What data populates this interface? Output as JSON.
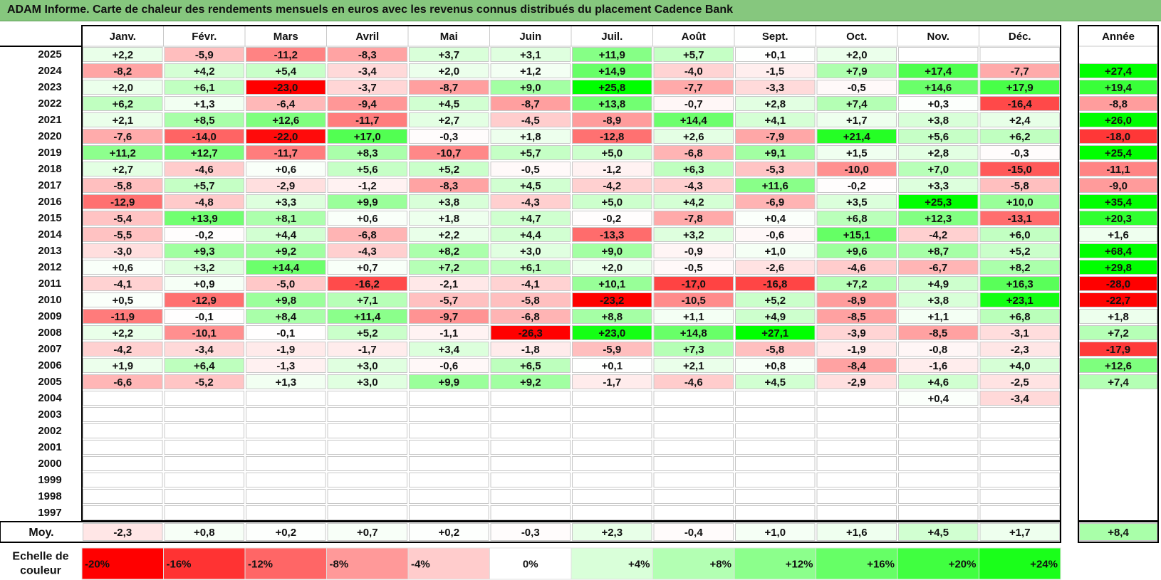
{
  "title": "ADAM Informe. Carte de chaleur des rendements mensuels en euros avec les revenus connus distribués du placement Cadence Bank",
  "chart_data": {
    "type": "heatmap",
    "months": [
      "Janv.",
      "Févr.",
      "Mars",
      "Avril",
      "Mai",
      "Juin",
      "Juil.",
      "Août",
      "Sept.",
      "Oct.",
      "Nov.",
      "Déc."
    ],
    "year_header": "Année",
    "rows": [
      {
        "year": "2025",
        "values": [
          "+2,2",
          "-5,9",
          "-11,2",
          "-8,3",
          "+3,7",
          "+3,1",
          "+11,9",
          "+5,7",
          "+0,1",
          "+2,0",
          "",
          ""
        ],
        "annual": ""
      },
      {
        "year": "2024",
        "values": [
          "-8,2",
          "+4,2",
          "+5,4",
          "-3,4",
          "+2,0",
          "+1,2",
          "+14,9",
          "-4,0",
          "-1,5",
          "+7,9",
          "+17,4",
          "-7,7"
        ],
        "annual": "+27,4"
      },
      {
        "year": "2023",
        "values": [
          "+2,0",
          "+6,1",
          "-23,0",
          "-3,7",
          "-8,7",
          "+9,0",
          "+25,8",
          "-7,7",
          "-3,3",
          "-0,5",
          "+14,6",
          "+17,9"
        ],
        "annual": "+19,4"
      },
      {
        "year": "2022",
        "values": [
          "+6,2",
          "+1,3",
          "-6,4",
          "-9,4",
          "+4,5",
          "-8,7",
          "+13,8",
          "-0,7",
          "+2,8",
          "+7,4",
          "+0,3",
          "-16,4"
        ],
        "annual": "-8,8"
      },
      {
        "year": "2021",
        "values": [
          "+2,1",
          "+8,5",
          "+12,6",
          "-11,7",
          "+2,7",
          "-4,5",
          "-8,9",
          "+14,4",
          "+4,1",
          "+1,7",
          "+3,8",
          "+2,4"
        ],
        "annual": "+26,0"
      },
      {
        "year": "2020",
        "values": [
          "-7,6",
          "-14,0",
          "-22,0",
          "+17,0",
          "-0,3",
          "+1,8",
          "-12,8",
          "+2,6",
          "-7,9",
          "+21,4",
          "+5,6",
          "+6,2"
        ],
        "annual": "-18,0"
      },
      {
        "year": "2019",
        "values": [
          "+11,2",
          "+12,7",
          "-11,7",
          "+8,3",
          "-10,7",
          "+5,7",
          "+5,0",
          "-6,8",
          "+9,1",
          "+1,5",
          "+2,8",
          "-0,3"
        ],
        "annual": "+25,4"
      },
      {
        "year": "2018",
        "values": [
          "+2,7",
          "-4,6",
          "+0,6",
          "+5,6",
          "+5,2",
          "-0,5",
          "-1,2",
          "+6,3",
          "-5,3",
          "-10,0",
          "+7,0",
          "-15,0"
        ],
        "annual": "-11,1"
      },
      {
        "year": "2017",
        "values": [
          "-5,8",
          "+5,7",
          "-2,9",
          "-1,2",
          "-8,3",
          "+4,5",
          "-4,2",
          "-4,3",
          "+11,6",
          "-0,2",
          "+3,3",
          "-5,8"
        ],
        "annual": "-9,0"
      },
      {
        "year": "2016",
        "values": [
          "-12,9",
          "-4,8",
          "+3,3",
          "+9,9",
          "+3,8",
          "-4,3",
          "+5,0",
          "+4,2",
          "-6,9",
          "+3,5",
          "+25,3",
          "+10,0"
        ],
        "annual": "+35,4"
      },
      {
        "year": "2015",
        "values": [
          "-5,4",
          "+13,9",
          "+8,1",
          "+0,6",
          "+1,8",
          "+4,7",
          "-0,2",
          "-7,8",
          "+0,4",
          "+6,8",
          "+12,3",
          "-13,1"
        ],
        "annual": "+20,3"
      },
      {
        "year": "2014",
        "values": [
          "-5,5",
          "-0,2",
          "+4,4",
          "-6,8",
          "+2,2",
          "+4,4",
          "-13,3",
          "+3,2",
          "-0,6",
          "+15,1",
          "-4,2",
          "+6,0"
        ],
        "annual": "+1,6"
      },
      {
        "year": "2013",
        "values": [
          "-3,0",
          "+9,3",
          "+9,2",
          "-4,3",
          "+8,2",
          "+3,0",
          "+9,0",
          "-0,9",
          "+1,0",
          "+9,6",
          "+8,7",
          "+5,2"
        ],
        "annual": "+68,4"
      },
      {
        "year": "2012",
        "values": [
          "+0,6",
          "+3,2",
          "+14,4",
          "+0,7",
          "+7,2",
          "+6,1",
          "+2,0",
          "-0,5",
          "-2,6",
          "-4,6",
          "-6,7",
          "+8,2"
        ],
        "annual": "+29,8"
      },
      {
        "year": "2011",
        "values": [
          "-4,1",
          "+0,9",
          "-5,0",
          "-16,2",
          "-2,1",
          "-4,1",
          "+10,1",
          "-17,0",
          "-16,8",
          "+7,2",
          "+4,9",
          "+16,3"
        ],
        "annual": "-28,0"
      },
      {
        "year": "2010",
        "values": [
          "+0,5",
          "-12,9",
          "+9,8",
          "+7,1",
          "-5,7",
          "-5,8",
          "-23,2",
          "-10,5",
          "+5,2",
          "-8,9",
          "+3,8",
          "+23,1"
        ],
        "annual": "-22,7"
      },
      {
        "year": "2009",
        "values": [
          "-11,9",
          "-0,1",
          "+8,4",
          "+11,4",
          "-9,7",
          "-6,8",
          "+8,8",
          "+1,1",
          "+4,9",
          "-8,5",
          "+1,1",
          "+6,8"
        ],
        "annual": "+1,8"
      },
      {
        "year": "2008",
        "values": [
          "+2,2",
          "-10,1",
          "-0,1",
          "+5,2",
          "-1,1",
          "-26,3",
          "+23,0",
          "+14,8",
          "+27,1",
          "-3,9",
          "-8,5",
          "-3,1"
        ],
        "annual": "+7,2"
      },
      {
        "year": "2007",
        "values": [
          "-4,2",
          "-3,4",
          "-1,9",
          "-1,7",
          "+3,4",
          "-1,8",
          "-5,9",
          "+7,3",
          "-5,8",
          "-1,9",
          "-0,8",
          "-2,3"
        ],
        "annual": "-17,9"
      },
      {
        "year": "2006",
        "values": [
          "+1,9",
          "+6,4",
          "-1,3",
          "+3,0",
          "-0,6",
          "+6,5",
          "+0,1",
          "+2,1",
          "+0,8",
          "-8,4",
          "-1,6",
          "+4,0"
        ],
        "annual": "+12,6"
      },
      {
        "year": "2005",
        "values": [
          "-6,6",
          "-5,2",
          "+1,3",
          "+3,0",
          "+9,9",
          "+9,2",
          "-1,7",
          "-4,6",
          "+4,5",
          "-2,9",
          "+4,6",
          "-2,5"
        ],
        "annual": "+7,4"
      },
      {
        "year": "2004",
        "values": [
          "",
          "",
          "",
          "",
          "",
          "",
          "",
          "",
          "",
          "",
          "+0,4",
          "-3,4"
        ],
        "annual": ""
      },
      {
        "year": "2003",
        "values": [
          "",
          "",
          "",
          "",
          "",
          "",
          "",
          "",
          "",
          "",
          "",
          ""
        ],
        "annual": ""
      },
      {
        "year": "2002",
        "values": [
          "",
          "",
          "",
          "",
          "",
          "",
          "",
          "",
          "",
          "",
          "",
          ""
        ],
        "annual": ""
      },
      {
        "year": "2001",
        "values": [
          "",
          "",
          "",
          "",
          "",
          "",
          "",
          "",
          "",
          "",
          "",
          ""
        ],
        "annual": ""
      },
      {
        "year": "2000",
        "values": [
          "",
          "",
          "",
          "",
          "",
          "",
          "",
          "",
          "",
          "",
          "",
          ""
        ],
        "annual": ""
      },
      {
        "year": "1999",
        "values": [
          "",
          "",
          "",
          "",
          "",
          "",
          "",
          "",
          "",
          "",
          "",
          ""
        ],
        "annual": ""
      },
      {
        "year": "1998",
        "values": [
          "",
          "",
          "",
          "",
          "",
          "",
          "",
          "",
          "",
          "",
          "",
          ""
        ],
        "annual": ""
      },
      {
        "year": "1997",
        "values": [
          "",
          "",
          "",
          "",
          "",
          "",
          "",
          "",
          "",
          "",
          "",
          ""
        ],
        "annual": ""
      }
    ],
    "average": {
      "label": "Moy.",
      "values": [
        "-2,3",
        "+0,8",
        "+0,2",
        "+0,7",
        "+0,2",
        "-0,3",
        "+2,3",
        "-0,4",
        "+1,0",
        "+1,6",
        "+4,5",
        "+1,7"
      ],
      "annual": "+8,4"
    },
    "color_scale": {
      "label": "Echelle de couleur",
      "stops": [
        {
          "label": "-20%",
          "value": -20,
          "color": "#ff0000"
        },
        {
          "label": "-16%",
          "value": -16,
          "color": "#ff3333"
        },
        {
          "label": "-12%",
          "value": -12,
          "color": "#ff6666"
        },
        {
          "label": "-8%",
          "value": -8,
          "color": "#ff9999"
        },
        {
          "label": "-4%",
          "value": -4,
          "color": "#ffcccc"
        },
        {
          "label": "0%",
          "value": 0,
          "color": "#ffffff"
        },
        {
          "label": "+4%",
          "value": 4,
          "color": "#d9ffd9"
        },
        {
          "label": "+8%",
          "value": 8,
          "color": "#b3ffb3"
        },
        {
          "label": "+12%",
          "value": 12,
          "color": "#8cff8c"
        },
        {
          "label": "+16%",
          "value": 16,
          "color": "#66ff66"
        },
        {
          "label": "+20%",
          "value": 20,
          "color": "#40ff40"
        },
        {
          "label": "+24%",
          "value": 24,
          "color": "#1aff1a"
        }
      ]
    }
  },
  "colors": {
    "title_bar": "#86c77e",
    "negative_max": "#ff0000",
    "positive_max": "#00ff00",
    "neutral": "#ffffff",
    "grid": "#c8c8c8",
    "border": "#000000"
  }
}
